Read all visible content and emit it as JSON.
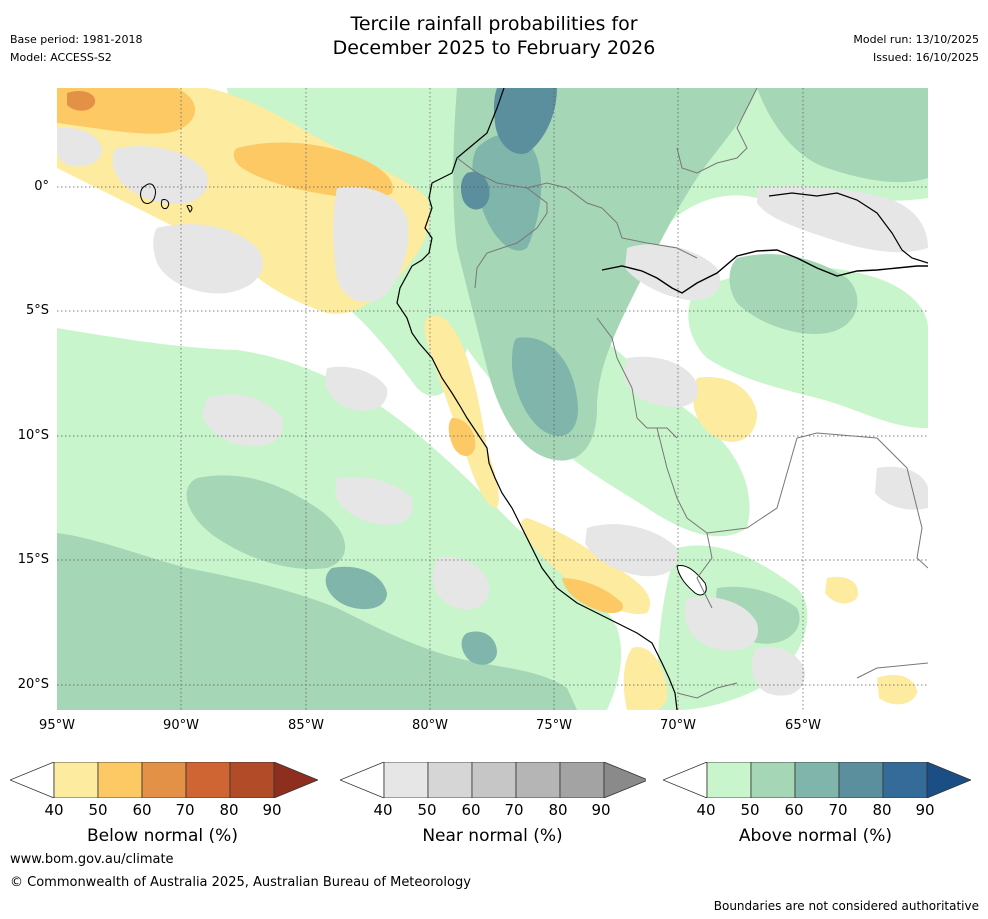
{
  "title": {
    "line1": "Tercile rainfall probabilities for",
    "line2": "December 2025 to February 2026"
  },
  "meta_left": {
    "base_period": "Base period: 1981-2018",
    "model": "Model: ACCESS-S2"
  },
  "meta_right": {
    "model_run": "Model run: 13/10/2025",
    "issued": "Issued: 16/10/2025"
  },
  "map": {
    "lat_ticks": [
      "0°",
      "5°S",
      "10°S",
      "15°S",
      "20°S"
    ],
    "lon_ticks": [
      "95°W",
      "90°W",
      "85°W",
      "80°W",
      "75°W",
      "70°W",
      "65°W"
    ]
  },
  "colorbars": [
    {
      "label": "Below normal (%)",
      "ticks": [
        "40",
        "50",
        "60",
        "70",
        "80",
        "90"
      ],
      "colors": [
        "#fdeba0",
        "#fcc964",
        "#e39147",
        "#cf6532",
        "#b24c28",
        "#8e2e1f"
      ]
    },
    {
      "label": "Near normal (%)",
      "ticks": [
        "40",
        "50",
        "60",
        "70",
        "80",
        "90"
      ],
      "colors": [
        "#e6e6e6",
        "#d6d6d6",
        "#c6c6c6",
        "#b5b5b5",
        "#a3a3a3",
        "#8a8a8a"
      ]
    },
    {
      "label": "Above normal (%)",
      "ticks": [
        "40",
        "50",
        "60",
        "70",
        "80",
        "90"
      ],
      "colors": [
        "#c8f5cb",
        "#a5d6b5",
        "#7fb5aa",
        "#5b8f9e",
        "#356b99",
        "#1b4e85"
      ]
    }
  ],
  "footer": {
    "url": "www.bom.gov.au/climate",
    "copyright": "© Commonwealth of Australia 2025, Australian Bureau of Meteorology",
    "disclaimer": "Boundaries are not considered authoritative"
  },
  "palette": {
    "below40": "#fdeba0",
    "below50": "#fcc964",
    "below60": "#e39147",
    "near40": "#e6e6e6",
    "above40": "#c8f5cb",
    "above50": "#a5d6b5",
    "above60": "#7fb5aa",
    "above70": "#5b8f9e"
  }
}
